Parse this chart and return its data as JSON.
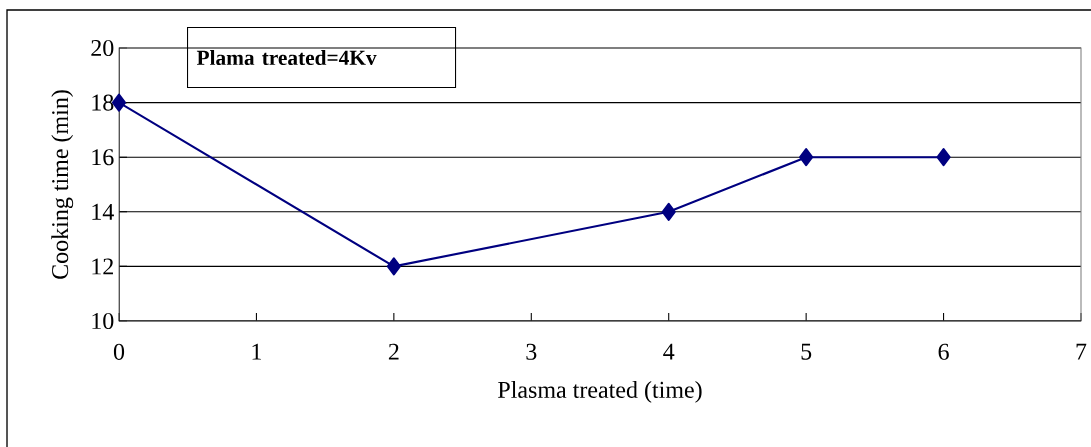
{
  "chart_data": {
    "type": "line",
    "xlabel": "Plasma treated (time)",
    "ylabel": "Cooking time (min)",
    "annotations": [
      "Plama treated=4Kv"
    ],
    "x": [
      0,
      2,
      4,
      5,
      6
    ],
    "series": [
      {
        "color": "#000080",
        "values": [
          18,
          12,
          14,
          16,
          16
        ]
      }
    ],
    "xlim": [
      0,
      7
    ],
    "xticks": [
      0,
      1,
      2,
      3,
      4,
      5,
      6,
      7
    ],
    "ylim": [
      10,
      20
    ],
    "yticks": [
      10,
      12,
      14,
      16,
      18,
      20
    ],
    "grid": "y",
    "marker": "diamond",
    "line_style": "solid"
  }
}
